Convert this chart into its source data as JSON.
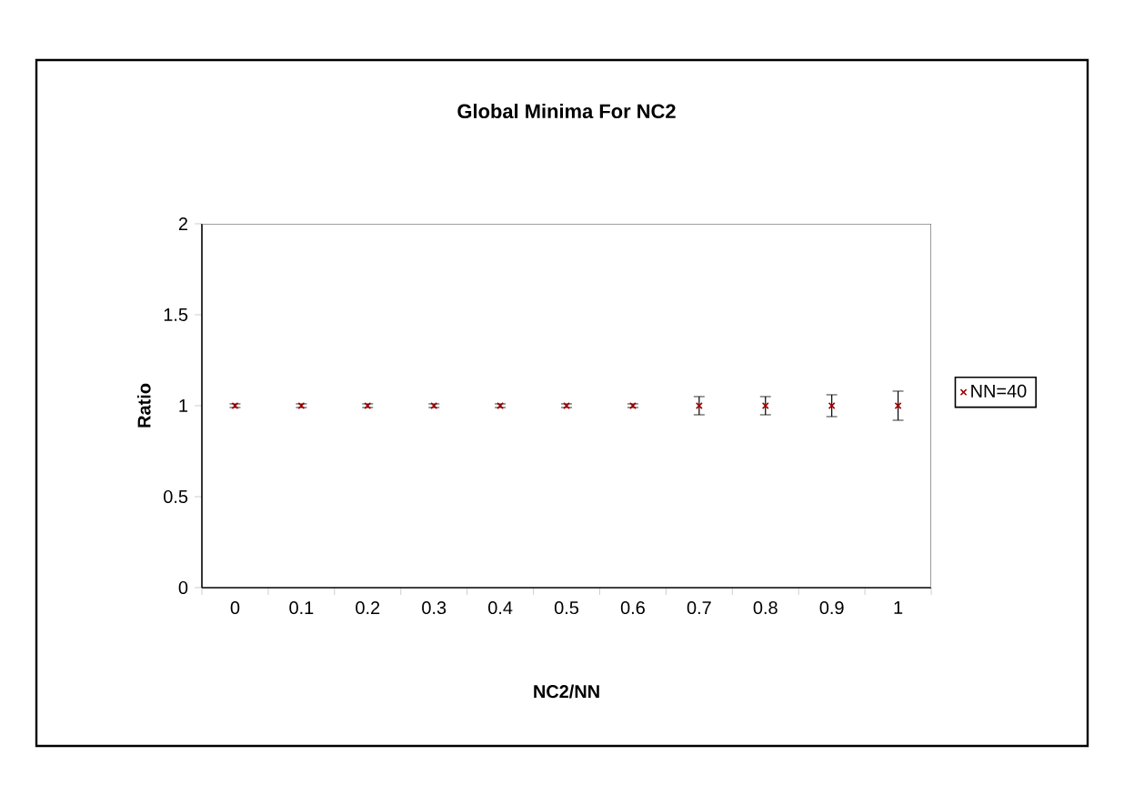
{
  "chart_data": {
    "type": "scatter",
    "title": "Global Minima For NC2",
    "xlabel": "NC2/NN",
    "ylabel": "Ratio",
    "categories": [
      "0",
      "0.1",
      "0.2",
      "0.3",
      "0.4",
      "0.5",
      "0.6",
      "0.7",
      "0.8",
      "0.9",
      "1"
    ],
    "series": [
      {
        "name": "NN=40",
        "color": "#a00000",
        "values": [
          1,
          1,
          1,
          1,
          1,
          1,
          1,
          1,
          1,
          1,
          1
        ],
        "errors": [
          0.01,
          0.01,
          0.01,
          0.01,
          0.01,
          0.01,
          0.01,
          0.05,
          0.05,
          0.06,
          0.08
        ]
      }
    ],
    "ylim": [
      0,
      2
    ],
    "yticks": [
      0,
      0.5,
      1,
      1.5,
      2
    ],
    "marker": "cross",
    "legend": "right"
  }
}
